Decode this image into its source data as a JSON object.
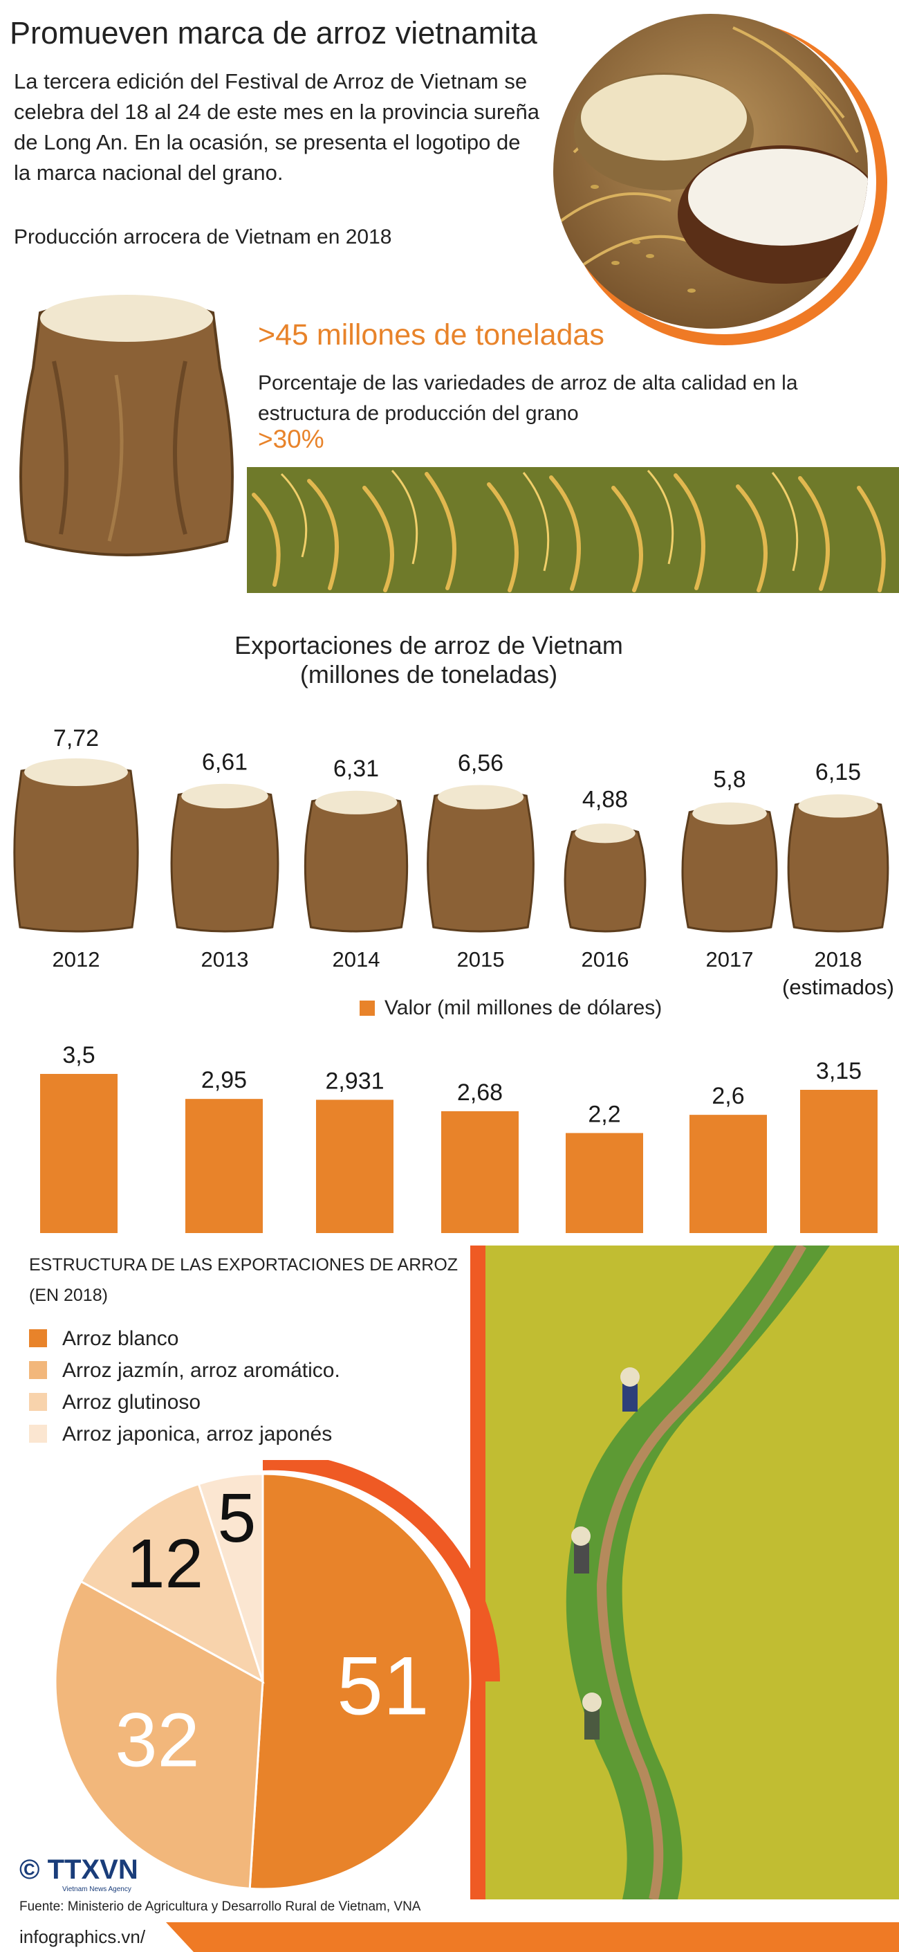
{
  "title": "Promueven marca de arroz vietnamita",
  "intro": "La tercera edición del Festival de Arroz de Vietnam se celebra del 18 al 24 de este mes en la provincia sureña de Long An. En la ocasión, se presenta el logotipo de la marca nacional del grano.",
  "production": {
    "label": "Producción arrocera de Vietnam en 2018",
    "value": ">45 millones de toneladas",
    "quality_label": "Porcentaje de las variedades de arroz de alta calidad en la estructura de producción del grano",
    "quality_value": ">30%"
  },
  "exports": {
    "title_line1": "Exportaciones de arroz de Vietnam",
    "title_line2": "(millones de toneladas)",
    "value_legend": "Valor (mil millones de dólares)"
  },
  "structure": {
    "title_line1": "ESTRUCTURA DE LAS EXPORTACIONES DE ARROZ",
    "title_line2": "(EN 2018)",
    "legend": [
      {
        "label": "Arroz blanco",
        "color": "#e8832a"
      },
      {
        "label": "Arroz jazmín, arroz aromático.",
        "color": "#f2b77b"
      },
      {
        "label": "Arroz glutinoso",
        "color": "#f8d3ac"
      },
      {
        "label": "Arroz japonica, arroz japonés",
        "color": "#fbe6d1"
      }
    ]
  },
  "chart_data": [
    {
      "type": "bar",
      "title": "Exportaciones de arroz de Vietnam (millones de toneladas)",
      "categories": [
        "2012",
        "2013",
        "2014",
        "2015",
        "2016",
        "2017",
        "2018 (estimados)"
      ],
      "values": [
        7.72,
        6.61,
        6.31,
        6.56,
        4.88,
        5.8,
        6.15
      ],
      "value_labels": [
        "7,72",
        "6,61",
        "6,31",
        "6,56",
        "4,88",
        "5,8",
        "6,15"
      ]
    },
    {
      "type": "bar",
      "series": [
        {
          "name": "Valor (mil millones de dólares)",
          "values": [
            3.5,
            2.95,
            2.931,
            2.68,
            2.2,
            2.6,
            3.15
          ]
        }
      ],
      "categories": [
        "2012",
        "2013",
        "2014",
        "2015",
        "2016",
        "2017",
        "2018 (estimados)"
      ],
      "value_labels": [
        "3,5",
        "2,95",
        "2,931",
        "2,68",
        "2,2",
        "2,6",
        "3,15"
      ],
      "color": "#e8832a"
    },
    {
      "type": "pie",
      "title": "ESTRUCTURA DE LAS EXPORTACIONES DE ARROZ (EN 2018)",
      "categories": [
        "Arroz blanco",
        "Arroz jazmín, arroz aromático.",
        "Arroz glutinoso",
        "Arroz japonica, arroz japonés"
      ],
      "values": [
        51,
        32,
        12,
        5
      ],
      "colors": [
        "#e8832a",
        "#f2b77b",
        "#f8d3ac",
        "#fbe6d1"
      ]
    }
  ],
  "logo_text": "© TTXVN",
  "logo_subtext": "Vietnam News Agency",
  "source": "Fuente: Ministerio de Agricultura y Desarrollo Rural de Vietnam, VNA",
  "footer": "infographics.vn/"
}
